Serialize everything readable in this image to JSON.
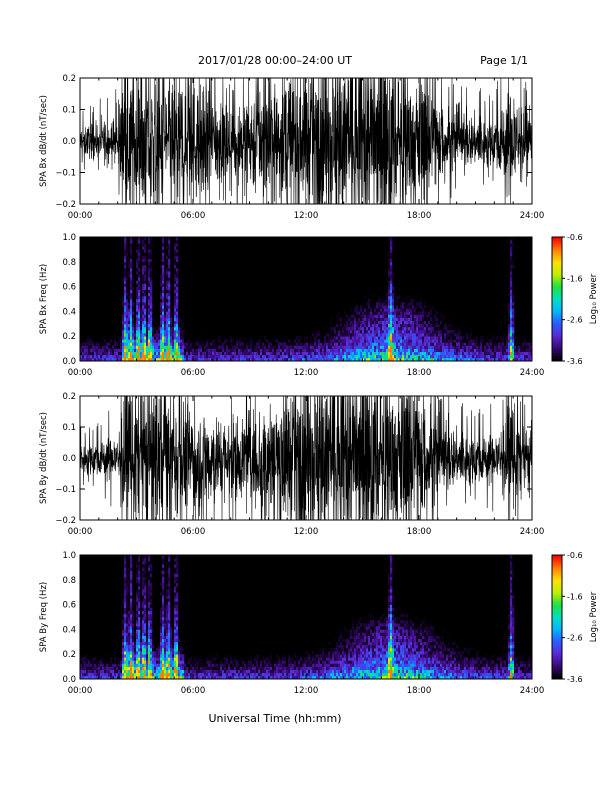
{
  "header": {
    "title": "2017/01/28  00:00–24:00 UT",
    "page": "Page 1/1"
  },
  "footer": {
    "xlabel": "Universal Time (hh:mm)"
  },
  "colors": {
    "waveform": "#000000",
    "spectrogram_background": "#000000",
    "colormap": [
      "#000000",
      "#3a0a78",
      "#5a2ad6",
      "#2a5cff",
      "#00b8ff",
      "#00e0c0",
      "#20e040",
      "#c0f000",
      "#ffe000",
      "#ff8000",
      "#ff0000"
    ]
  },
  "chart_data": [
    {
      "type": "line",
      "ylabel": "SPA Bx dB/dt (nT/sec)",
      "xlim": [
        0,
        24
      ],
      "ylim": [
        -0.2,
        0.2
      ],
      "x_ticks": [
        "00:00",
        "06:00",
        "12:00",
        "18:00",
        "24:00"
      ],
      "y_ticks": [
        "0.2",
        "0.1",
        "0.0",
        "−0.1",
        "−0.2"
      ],
      "envelope": {
        "x_hours": [
          0,
          1,
          2,
          2.3,
          4,
          6,
          8,
          10,
          12,
          14,
          16,
          18,
          19,
          20,
          22,
          23,
          24
        ],
        "amplitude_nT_per_sec": [
          0.05,
          0.06,
          0.08,
          0.25,
          0.25,
          0.22,
          0.12,
          0.2,
          0.25,
          0.28,
          0.3,
          0.22,
          0.15,
          0.09,
          0.08,
          0.2,
          0.06
        ]
      }
    },
    {
      "type": "heatmap",
      "ylabel": "SPA Bx Freq (Hz)",
      "xlim": [
        0,
        24
      ],
      "ylim": [
        0,
        1.0
      ],
      "x_ticks": [
        "00:00",
        "06:00",
        "12:00",
        "18:00",
        "24:00"
      ],
      "y_ticks": [
        "1.0",
        "0.8",
        "0.6",
        "0.4",
        "0.2",
        "0.0"
      ],
      "colorbar": {
        "label": "Log₁₀ Power",
        "range": [
          -3.6,
          -0.6
        ],
        "ticks": [
          "-0.6",
          "-1.6",
          "-2.6",
          "-3.6"
        ]
      },
      "bursts_hours": [
        2.4,
        2.7,
        3.1,
        3.4,
        3.7,
        4.4,
        4.7,
        5.1,
        16.5,
        22.9
      ]
    },
    {
      "type": "line",
      "ylabel": "SPA By dB/dt (nT/sec)",
      "xlim": [
        0,
        24
      ],
      "ylim": [
        -0.2,
        0.2
      ],
      "x_ticks": [
        "00:00",
        "06:00",
        "12:00",
        "18:00",
        "24:00"
      ],
      "y_ticks": [
        "0.2",
        "0.1",
        "0.0",
        "−0.1",
        "−0.2"
      ],
      "envelope": {
        "x_hours": [
          0,
          1,
          2,
          2.3,
          4,
          6,
          8,
          10,
          12,
          14,
          16,
          18,
          19,
          20,
          22,
          23,
          24
        ],
        "amplitude_nT_per_sec": [
          0.05,
          0.06,
          0.08,
          0.25,
          0.25,
          0.2,
          0.12,
          0.2,
          0.28,
          0.3,
          0.3,
          0.24,
          0.15,
          0.09,
          0.08,
          0.2,
          0.06
        ]
      }
    },
    {
      "type": "heatmap",
      "ylabel": "SPA By Freq (Hz)",
      "xlim": [
        0,
        24
      ],
      "ylim": [
        0,
        1.0
      ],
      "x_ticks": [
        "00:00",
        "06:00",
        "12:00",
        "18:00",
        "24:00"
      ],
      "y_ticks": [
        "1.0",
        "0.8",
        "0.6",
        "0.4",
        "0.2",
        "0.0"
      ],
      "colorbar": {
        "label": "Log₁₀ Power",
        "range": [
          -3.6,
          -0.6
        ],
        "ticks": [
          "-0.6",
          "-1.6",
          "-2.6",
          "-3.6"
        ]
      },
      "bursts_hours": [
        2.4,
        2.7,
        3.1,
        3.4,
        3.7,
        4.4,
        4.7,
        5.1,
        16.5,
        22.9
      ]
    }
  ]
}
